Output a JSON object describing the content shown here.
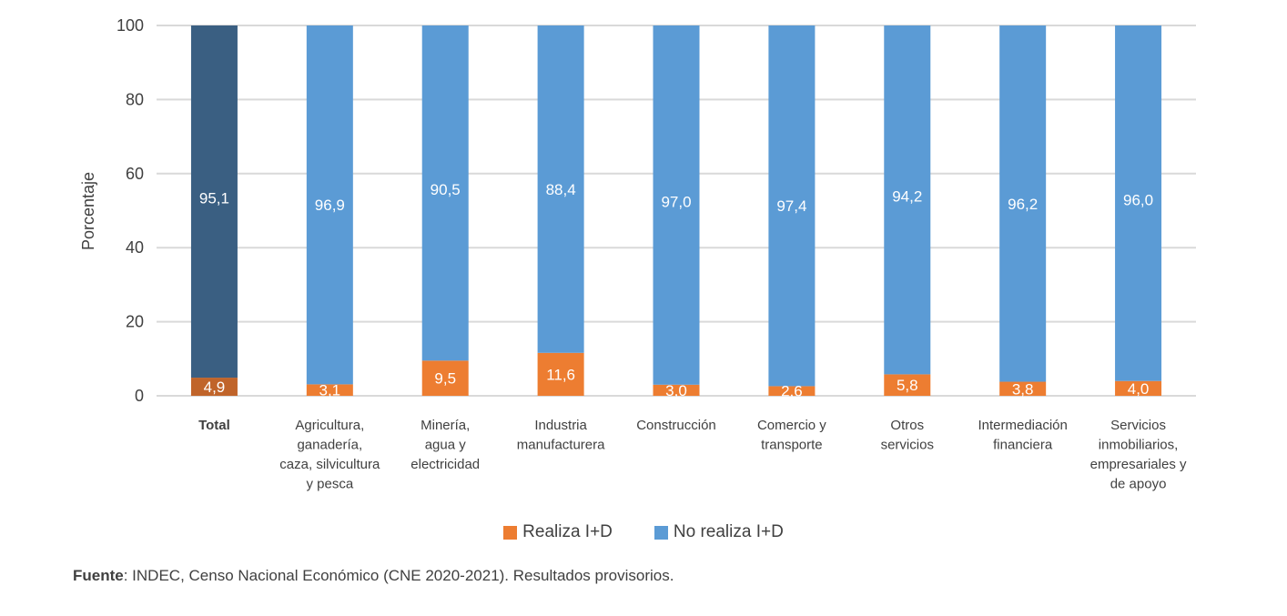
{
  "chart_data": {
    "type": "bar",
    "stacked": true,
    "title": "",
    "xlabel": "",
    "ylabel": "Porcentaje",
    "ylim": [
      0,
      100
    ],
    "yticks": [
      0,
      20,
      40,
      60,
      80,
      100
    ],
    "grid": true,
    "categories": [
      [
        "Total"
      ],
      [
        "Agricultura,",
        "ganadería,",
        "caza, silvicultura",
        "y pesca"
      ],
      [
        "Minería,",
        "agua y",
        "electricidad"
      ],
      [
        "Industria",
        "manufacturera"
      ],
      [
        "Construcción"
      ],
      [
        "Comercio y",
        "transporte"
      ],
      [
        "Otros",
        "servicios"
      ],
      [
        "Intermediación",
        "financiera"
      ],
      [
        "Servicios",
        "inmobiliarios,",
        "empresariales y",
        "de apoyo"
      ]
    ],
    "series": [
      {
        "name": "Realiza I+D",
        "color": "#ED7D31",
        "highlight_color": "#C0642A",
        "values": [
          4.9,
          3.1,
          9.5,
          11.6,
          3.0,
          2.6,
          5.8,
          3.8,
          4.0
        ],
        "labels": [
          "4,9",
          "3,1",
          "9,5",
          "11,6",
          "3,0",
          "2,6",
          "5,8",
          "3,8",
          "4,0"
        ]
      },
      {
        "name": "No realiza I+D",
        "color": "#5B9BD5",
        "highlight_color": "#3A5F82",
        "values": [
          95.1,
          96.9,
          90.5,
          88.4,
          97.0,
          97.4,
          94.2,
          96.2,
          96.0
        ],
        "labels": [
          "95,1",
          "96,9",
          "90,5",
          "88,4",
          "97,0",
          "97,4",
          "94,2",
          "96,2",
          "96,0"
        ]
      }
    ],
    "highlighted_category_index": 0,
    "legend_position": "bottom-center"
  },
  "source": {
    "label": "Fuente",
    "text": ": INDEC, Censo Nacional Económico (CNE 2020-2021). Resultados provisorios."
  }
}
